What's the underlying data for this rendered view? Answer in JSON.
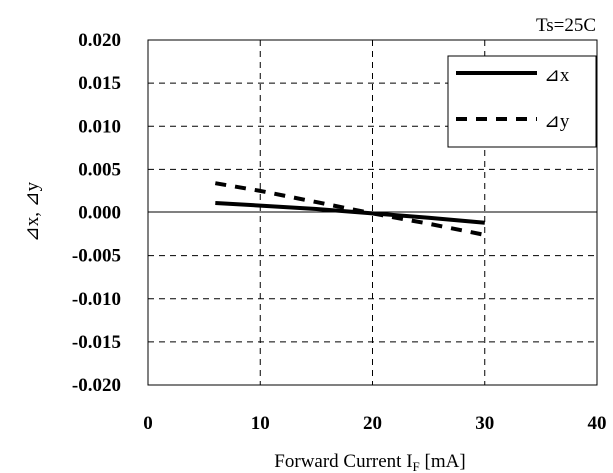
{
  "chart_data": {
    "type": "line",
    "annotation": "Ts=25C",
    "xlabel": "Forward Current I",
    "xlabel_sub": "F",
    "xlabel_unit": " [mA]",
    "ylabel": "⊿x, ⊿y",
    "xlim": [
      0,
      40
    ],
    "ylim": [
      -0.02,
      0.02
    ],
    "x_ticks": [
      "0",
      "10",
      "20",
      "30",
      "40"
    ],
    "y_ticks": [
      "0.020",
      "0.015",
      "0.010",
      "0.005",
      "0.000",
      "-0.005",
      "-0.010",
      "-0.015",
      "-0.020"
    ],
    "grid": true,
    "legend_position": "top-right",
    "series": [
      {
        "name": "⊿x",
        "style": "solid",
        "x": [
          6,
          10,
          15,
          20,
          25,
          30
        ],
        "y": [
          0.0011,
          0.0008,
          0.0004,
          -0.0001,
          -0.0006,
          -0.0012
        ]
      },
      {
        "name": "⊿y",
        "style": "dashed",
        "x": [
          6,
          10,
          15,
          20,
          25,
          30
        ],
        "y": [
          0.0034,
          0.0025,
          0.0012,
          -0.0001,
          -0.0013,
          -0.0026
        ]
      }
    ]
  }
}
